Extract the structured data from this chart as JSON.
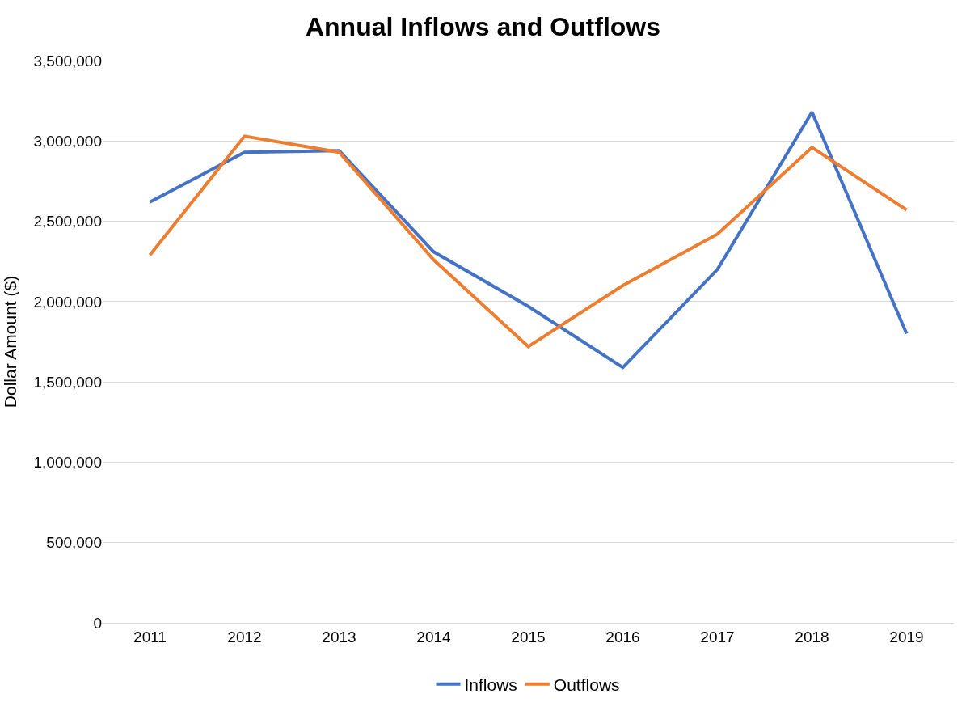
{
  "chart_data": {
    "type": "line",
    "title": "Annual Inflows and Outflows",
    "ylabel": "Dollar Amount ($)",
    "categories": [
      "2011",
      "2012",
      "2013",
      "2014",
      "2015",
      "2016",
      "2017",
      "2018",
      "2019"
    ],
    "series": [
      {
        "name": "Inflows",
        "color": "#4472c4",
        "values": [
          2620000,
          2930000,
          2940000,
          2310000,
          1970000,
          1590000,
          2200000,
          3180000,
          1800000
        ]
      },
      {
        "name": "Outflows",
        "color": "#ed7d31",
        "values": [
          2290000,
          3030000,
          2930000,
          2260000,
          1720000,
          2100000,
          2420000,
          2960000,
          2570000
        ]
      }
    ],
    "ylim": [
      0,
      3500000
    ],
    "yticks": [
      {
        "value": 0,
        "label": "0"
      },
      {
        "value": 500000,
        "label": "500,000"
      },
      {
        "value": 1000000,
        "label": "1,000,000"
      },
      {
        "value": 1500000,
        "label": "1,500,000"
      },
      {
        "value": 2000000,
        "label": "2,000,000"
      },
      {
        "value": 2500000,
        "label": "2,500,000"
      },
      {
        "value": 3000000,
        "label": "3,000,000"
      },
      {
        "value": 3500000,
        "label": "3,500,000"
      }
    ],
    "grid": "y",
    "legend": "bottom",
    "marker": "none",
    "line_style": "solid"
  }
}
